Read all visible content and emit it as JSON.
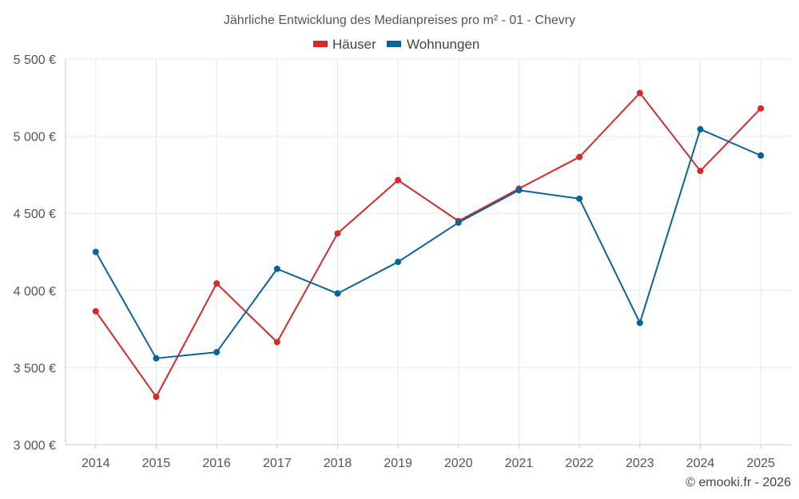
{
  "chart_data": {
    "type": "line",
    "title": "Jährliche Entwicklung des Medianpreises pro m² - 01 - Chevry",
    "categories": [
      "2014",
      "2015",
      "2016",
      "2017",
      "2018",
      "2019",
      "2020",
      "2021",
      "2022",
      "2023",
      "2024",
      "2025"
    ],
    "series": [
      {
        "name": "Häuser",
        "color": "#d42a2a",
        "values": [
          3865,
          3310,
          4045,
          3665,
          4370,
          4715,
          4450,
          4660,
          4865,
          5280,
          4775,
          5180
        ]
      },
      {
        "name": "Wohnungen",
        "color": "#07649b",
        "values": [
          4250,
          3560,
          3600,
          4140,
          3980,
          4185,
          4440,
          4650,
          4595,
          3790,
          5045,
          4875
        ]
      }
    ],
    "ylim": [
      3000,
      5500
    ],
    "yticks": [
      3000,
      3500,
      4000,
      4500,
      5000,
      5500
    ],
    "ytick_labels": [
      "3 000 €",
      "3 500 €",
      "4 000 €",
      "4 500 €",
      "5 000 €",
      "5 500 €"
    ],
    "xlabel": "",
    "ylabel": "",
    "grid": true,
    "legend_position": "top-center"
  },
  "credit": "© emooki.fr - 2026"
}
